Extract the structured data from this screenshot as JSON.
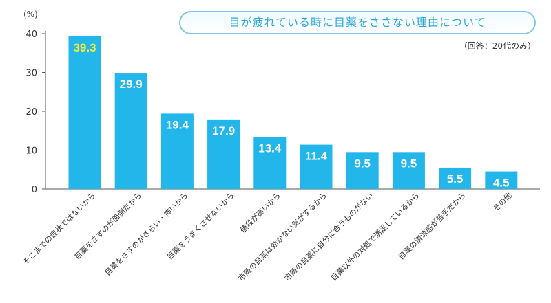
{
  "chart_data": {
    "type": "bar",
    "title": "目が疲れている時に目薬をささない理由について",
    "subtitle": "（回答：20代のみ）",
    "unit_label": "(%)",
    "categories": [
      "そこまでの症状ではないから",
      "目薬をさすのが面倒だから",
      "目薬をさすのがきらい・怖いから",
      "目薬をうまくさせないから",
      "値段が高いから",
      "市販の目薬は効かない気がするから",
      "市販の目薬に自分に合うものがない",
      "目薬以外の対処で満足しているから",
      "目薬の清涼感が苦手だから",
      "その他"
    ],
    "values": [
      39.3,
      29.9,
      19.4,
      17.9,
      13.4,
      11.4,
      9.5,
      9.5,
      5.5,
      4.5
    ],
    "value_labels": [
      "39.3",
      "29.9",
      "19.4",
      "17.9",
      "13.4",
      "11.4",
      "9.5",
      "9.5",
      "5.5",
      "4.5"
    ],
    "ylim": [
      0,
      40
    ],
    "yticks": [
      "0",
      "10",
      "20",
      "30",
      "40"
    ],
    "bar_color": "#22b6ea",
    "highlight_label_color": "#f3e93a",
    "label_color": "#ffffff",
    "grid": false
  }
}
